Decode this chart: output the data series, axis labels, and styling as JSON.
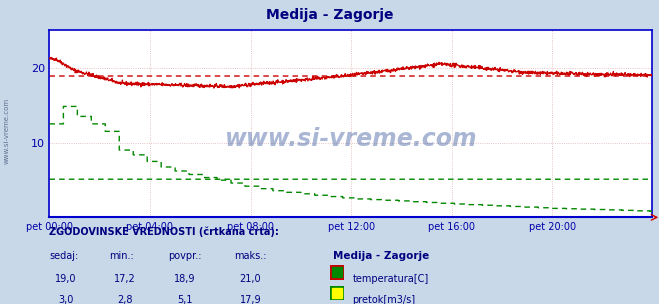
{
  "title": "Medija - Zagorje",
  "title_color": "#000080",
  "bg_color": "#c8d8e8",
  "plot_bg_color": "#ffffff",
  "grid_color": "#e8c8c8",
  "border_color": "#0000cc",
  "x_label_color": "#0000aa",
  "y_label_color": "#0000aa",
  "watermark": "www.si-vreme.com",
  "side_label": "www.si-vreme.com",
  "x_ticks": [
    0,
    288,
    576,
    864,
    1152,
    1440
  ],
  "x_tick_labels": [
    "pet 00:00",
    "pet 04:00",
    "pet 08:00",
    "pet 12:00",
    "pet 16:00",
    "pet 20:00"
  ],
  "n_points": 1728,
  "temp_color": "#cc0000",
  "flow_color": "#008800",
  "temp_avg": 18.9,
  "flow_avg": 5.1,
  "y_min": 0,
  "y_max": 25,
  "y_ticks": [
    10,
    20
  ],
  "legend_text": "ZGODOVINSKE VREDNOSTI (črtkana črta):",
  "col_headers": [
    "sedaj:",
    "min.:",
    "povpr.:",
    "maks.:"
  ],
  "row1_vals": [
    "19,0",
    "17,2",
    "18,9",
    "21,0"
  ],
  "row2_vals": [
    "3,0",
    "2,8",
    "5,1",
    "17,9"
  ],
  "series_label1": "temperatura[C]",
  "series_label2": "pretok[m3/s]",
  "station_label": "Medija - Zagorje"
}
